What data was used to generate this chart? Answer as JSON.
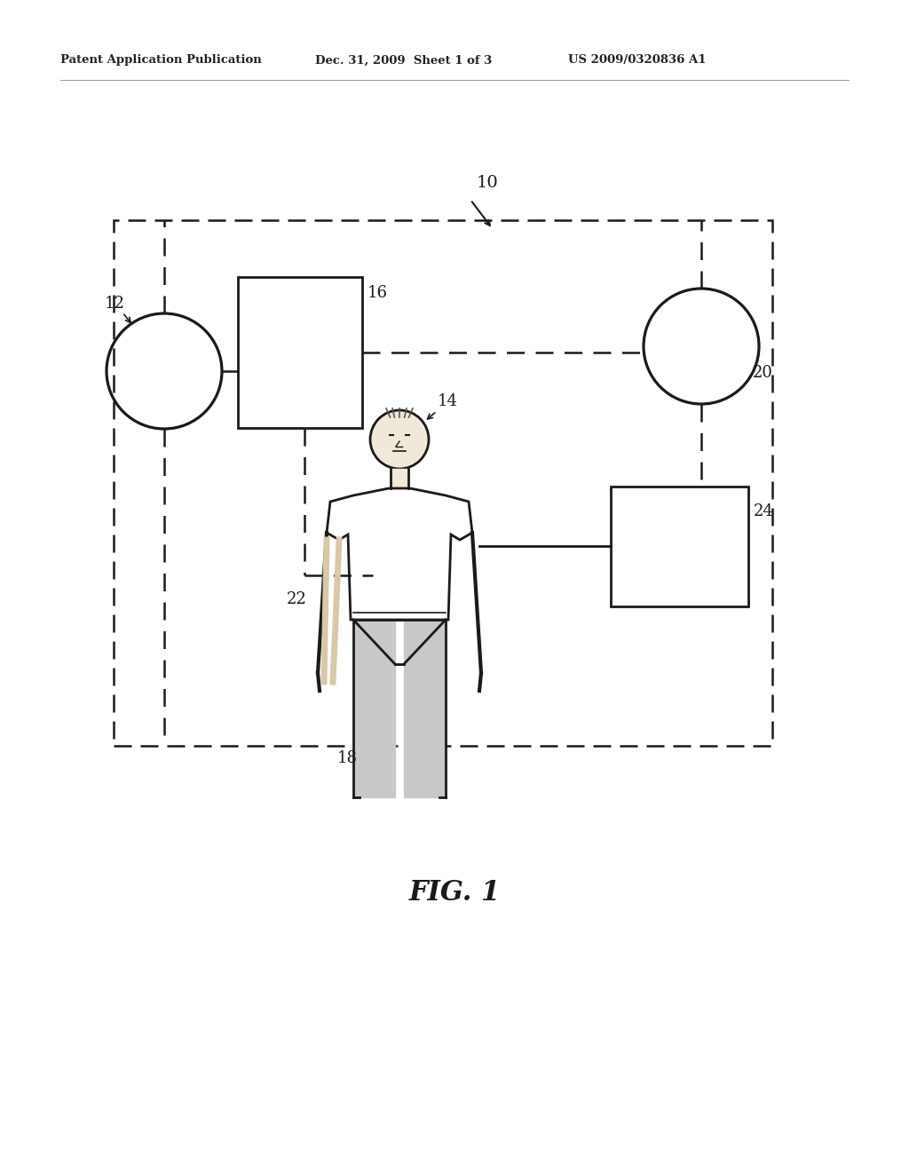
{
  "bg_color": "#ffffff",
  "header_left": "Patent Application Publication",
  "header_mid": "Dec. 31, 2009  Sheet 1 of 3",
  "header_right": "US 2009/0320836 A1",
  "fig_label": "FIG. 1",
  "label_10": "10",
  "label_12": "12",
  "label_14": "14",
  "label_16": "16",
  "label_18": "18",
  "label_20": "20",
  "label_22": "22",
  "label_24": "24",
  "line_color": "#1a1a1a",
  "dashed_color": "#1a1a1a",
  "header_color": "#222222"
}
